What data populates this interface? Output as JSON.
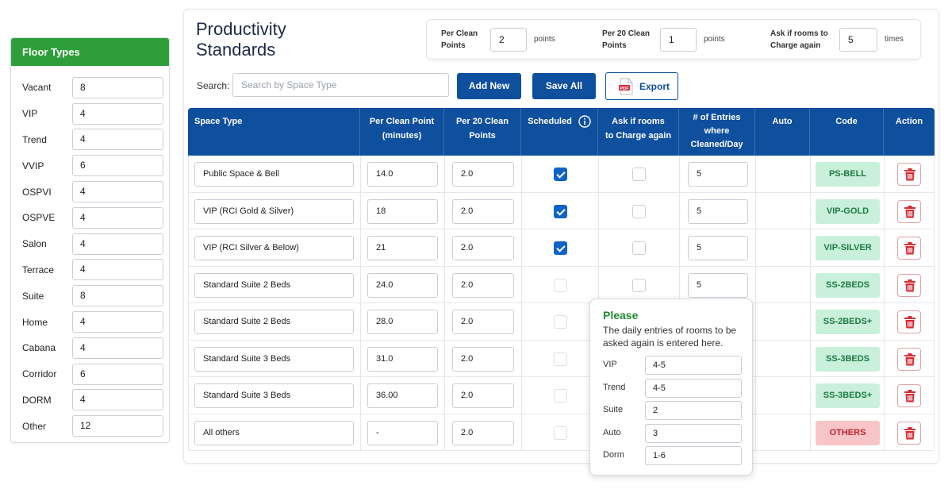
{
  "sidebar": {
    "title": "Floor Types",
    "items": [
      {
        "label": "Vacant",
        "value": "8"
      },
      {
        "label": "VIP",
        "value": "4"
      },
      {
        "label": "Trend",
        "value": "4"
      },
      {
        "label": "VVIP",
        "value": "6"
      },
      {
        "label": "OSPVI",
        "value": "4"
      },
      {
        "label": "OSPVE",
        "value": "4"
      },
      {
        "label": "Salon",
        "value": "4"
      },
      {
        "label": "Terrace",
        "value": "4"
      },
      {
        "label": "Suite",
        "value": "8"
      },
      {
        "label": "Home",
        "value": "4"
      },
      {
        "label": "Cabana",
        "value": "4"
      },
      {
        "label": "Corridor",
        "value": "6"
      },
      {
        "label": "DORM",
        "value": "4"
      },
      {
        "label": "Other",
        "value": "12"
      }
    ]
  },
  "header": {
    "title_line1": "Productivity",
    "title_line2": "Standards"
  },
  "settings": {
    "per_clean_label_1": "Per Clean",
    "per_clean_label_2": "Points",
    "per_clean_value": "2",
    "per_clean_unit": "points",
    "per20_label_1": "Per 20 Clean",
    "per20_label_2": "Points",
    "per20_value": "1",
    "per20_unit": "points",
    "ask_label_1": "Ask if rooms to",
    "ask_label_2": "Charge again",
    "ask_value": "5",
    "ask_unit": "times"
  },
  "toolbar": {
    "search_label": "Search:",
    "search_placeholder": "Search by Space Type",
    "add_new": "Add New",
    "save_all": "Save All",
    "export": "Export"
  },
  "table": {
    "headers": {
      "space_type": "Space Type",
      "per_clean_1": "Per Clean Point",
      "per_clean_2": "(minutes)",
      "per20_1": "Per 20 Clean",
      "per20_2": "Points",
      "scheduled": "Scheduled",
      "ask_1": "Ask if rooms",
      "ask_2": "to Charge again",
      "entries_1": "# of Entries",
      "entries_2": "where",
      "entries_3": "Cleaned/Day",
      "auto": "Auto",
      "code": "Code",
      "action": "Action"
    },
    "rows": [
      {
        "space": "Public Space & Bell",
        "per_clean": "14.0",
        "per20": "2.0",
        "scheduled": true,
        "ask": false,
        "entries": "5",
        "code": "PS-BELL",
        "code_color": "#c9f0da"
      },
      {
        "space": "VIP (RCI Gold & Silver)",
        "per_clean": "18",
        "per20": "2.0",
        "scheduled": true,
        "ask": false,
        "entries": "5",
        "code": "VIP-GOLD",
        "code_color": "#c9f0da"
      },
      {
        "space": "VIP (RCI Silver & Below)",
        "per_clean": "21",
        "per20": "2.0",
        "scheduled": true,
        "ask": false,
        "entries": "5",
        "code": "VIP-SILVER",
        "code_color": "#c9f0da"
      },
      {
        "space": "Standard Suite 2 Beds",
        "per_clean": "24.0",
        "per20": "2.0",
        "scheduled": false,
        "ask": false,
        "entries": "5",
        "code": "SS-2BEDS",
        "code_color": "#c9f0da"
      },
      {
        "space": "Standard Suite 2 Beds",
        "per_clean": "28.0",
        "per20": "2.0",
        "scheduled": false,
        "ask": null,
        "entries": "",
        "code": "SS-2BEDS+",
        "code_color": "#c9f0da"
      },
      {
        "space": "Standard Suite 3 Beds",
        "per_clean": "31.0",
        "per20": "2.0",
        "scheduled": false,
        "ask": null,
        "entries": "",
        "code": "SS-3BEDS",
        "code_color": "#c9f0da"
      },
      {
        "space": "Standard Suite 3 Beds",
        "per_clean": "36.00",
        "per20": "2.0",
        "scheduled": false,
        "ask": null,
        "entries": "",
        "code": "SS-3BEDS+",
        "code_color": "#c9f0da"
      },
      {
        "space": "All others",
        "per_clean": "-",
        "per20": "2.0",
        "scheduled": false,
        "ask": null,
        "entries": "",
        "code": "OTHERS",
        "code_color": "#f7c5c8"
      }
    ]
  },
  "popover": {
    "title": "Please",
    "desc": "The daily entries of rooms to be asked again is entered here.",
    "items": [
      {
        "label": "VIP",
        "value": "4-5"
      },
      {
        "label": "Trend",
        "value": "4-5"
      },
      {
        "label": "Suite",
        "value": "2"
      },
      {
        "label": "Auto",
        "value": "3"
      },
      {
        "label": "Dorm",
        "value": "1-6"
      }
    ]
  },
  "icons": {
    "info": "info-icon",
    "pdf": "pdf-icon",
    "delete": "trash-icon"
  },
  "colors": {
    "primary": "#0e4f9e",
    "sidebar_header": "#2e9e3a",
    "checkbox_on": "#0e63c4",
    "delete": "#d62b35"
  }
}
